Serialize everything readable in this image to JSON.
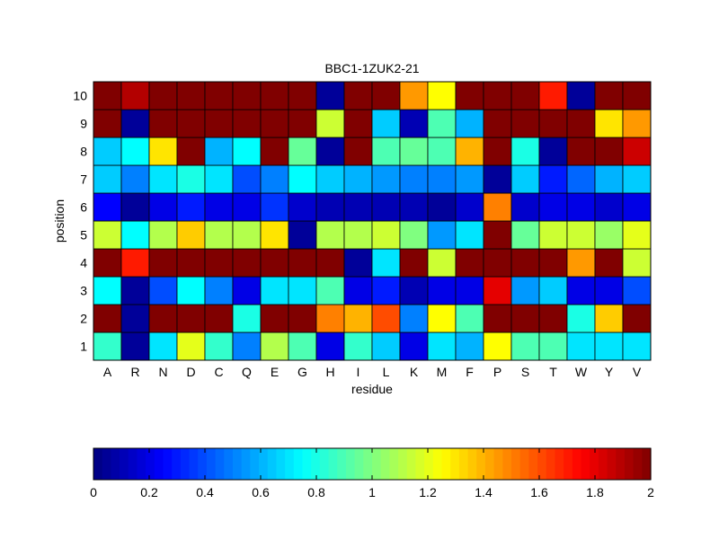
{
  "chart_data": {
    "type": "heatmap",
    "title": "BBC1-1ZUK2-21",
    "xlabel": "residue",
    "ylabel": "position",
    "x_categories": [
      "A",
      "R",
      "N",
      "D",
      "C",
      "Q",
      "E",
      "G",
      "H",
      "I",
      "L",
      "K",
      "M",
      "F",
      "P",
      "S",
      "T",
      "W",
      "Y",
      "V"
    ],
    "y_categories": [
      "1",
      "2",
      "3",
      "4",
      "5",
      "6",
      "7",
      "8",
      "9",
      "10"
    ],
    "grid": true,
    "colormap": "jet",
    "clim": [
      0,
      2
    ],
    "colorbar": {
      "placement": "bottom",
      "ticks": [
        0,
        0.2,
        0.4,
        0.6,
        0.8,
        1,
        1.2,
        1.4,
        1.6,
        1.8,
        2
      ],
      "tick_labels": [
        "0",
        "0.2",
        "0.4",
        "0.6",
        "0.8",
        "1",
        "1.2",
        "1.4",
        "1.6",
        "1.8",
        "2"
      ]
    },
    "values_note": "rows ordered position 1 (bottom) to 10 (top); columns follow x_categories",
    "values": [
      [
        0.85,
        0.05,
        0.7,
        1.2,
        0.85,
        0.5,
        1.1,
        0.9,
        0.2,
        0.85,
        0.65,
        0.2,
        0.7,
        0.6,
        1.25,
        0.9,
        0.9,
        0.7,
        0.7,
        0.7
      ],
      [
        2.0,
        0.05,
        2.0,
        2.0,
        2.0,
        0.8,
        2.0,
        2.0,
        1.5,
        1.4,
        1.6,
        0.5,
        1.25,
        0.9,
        2.0,
        2.0,
        2.0,
        0.8,
        1.35,
        2.0
      ],
      [
        0.75,
        0.05,
        0.4,
        0.75,
        0.5,
        0.2,
        0.7,
        0.7,
        0.9,
        0.2,
        0.3,
        0.1,
        0.2,
        0.2,
        1.8,
        0.55,
        0.65,
        0.2,
        0.2,
        0.4
      ],
      [
        2.0,
        1.7,
        2.0,
        2.0,
        2.0,
        2.0,
        2.0,
        2.0,
        2.0,
        0.05,
        0.7,
        2.0,
        1.15,
        2.0,
        2.0,
        2.0,
        2.0,
        1.45,
        2.0,
        1.15
      ],
      [
        1.15,
        0.75,
        1.1,
        1.35,
        1.1,
        1.1,
        1.3,
        0.05,
        1.1,
        1.1,
        1.15,
        1.0,
        0.55,
        0.7,
        2.0,
        0.95,
        1.15,
        1.15,
        1.05,
        1.2
      ],
      [
        0.25,
        0.05,
        0.2,
        0.3,
        0.2,
        0.2,
        0.35,
        0.15,
        0.1,
        0.1,
        0.1,
        0.1,
        0.05,
        0.15,
        1.5,
        0.15,
        0.2,
        0.2,
        0.15,
        0.2
      ],
      [
        0.65,
        0.5,
        0.7,
        0.8,
        0.7,
        0.4,
        0.5,
        0.75,
        0.65,
        0.6,
        0.55,
        0.5,
        0.5,
        0.55,
        0.05,
        0.65,
        0.3,
        0.45,
        0.6,
        0.65
      ],
      [
        0.65,
        0.75,
        1.3,
        2.0,
        0.6,
        0.75,
        2.0,
        0.95,
        0.05,
        2.0,
        0.9,
        0.95,
        0.9,
        1.4,
        2.0,
        0.8,
        0.05,
        2.0,
        2.0,
        1.85
      ],
      [
        2.0,
        0.05,
        2.0,
        2.0,
        2.0,
        2.0,
        2.0,
        2.0,
        1.15,
        2.0,
        0.65,
        0.1,
        0.9,
        0.6,
        2.0,
        2.0,
        2.0,
        2.0,
        1.3,
        1.45
      ],
      [
        2.0,
        1.9,
        2.0,
        2.0,
        2.0,
        2.0,
        2.0,
        2.0,
        0.05,
        2.0,
        2.0,
        1.45,
        1.25,
        2.0,
        2.0,
        2.0,
        1.7,
        0.05,
        2.0,
        2.0
      ]
    ]
  }
}
